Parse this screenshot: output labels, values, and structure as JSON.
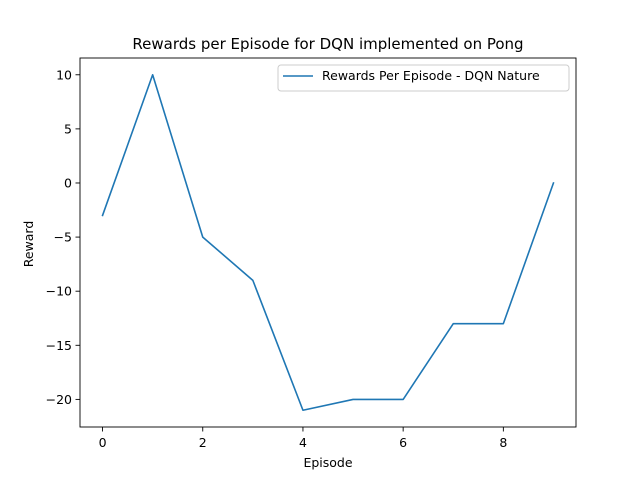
{
  "chart_data": {
    "type": "line",
    "title": "Rewards per Episode for DQN implemented on Pong",
    "xlabel": "Episode",
    "ylabel": "Reward",
    "x": [
      0,
      1,
      2,
      3,
      4,
      5,
      6,
      7,
      8,
      9
    ],
    "series": [
      {
        "name": "Rewards Per Episode - DQN Nature",
        "values": [
          -3,
          10,
          -5,
          -9,
          -21,
          -20,
          -20,
          -13,
          -13,
          0
        ],
        "color": "#1f77b4"
      }
    ],
    "xlim": [
      -0.45,
      9.45
    ],
    "ylim": [
      -22.55,
      11.55
    ],
    "xticks": [
      0,
      2,
      4,
      6,
      8
    ],
    "xtick_labels": [
      "0",
      "2",
      "4",
      "6",
      "8"
    ],
    "yticks": [
      10,
      5,
      0,
      -5,
      -10,
      -15,
      -20
    ],
    "ytick_labels": [
      "10",
      "5",
      "0",
      "−5",
      "−10",
      "−15",
      "−20"
    ],
    "grid": false,
    "legend_position": "top-right"
  }
}
